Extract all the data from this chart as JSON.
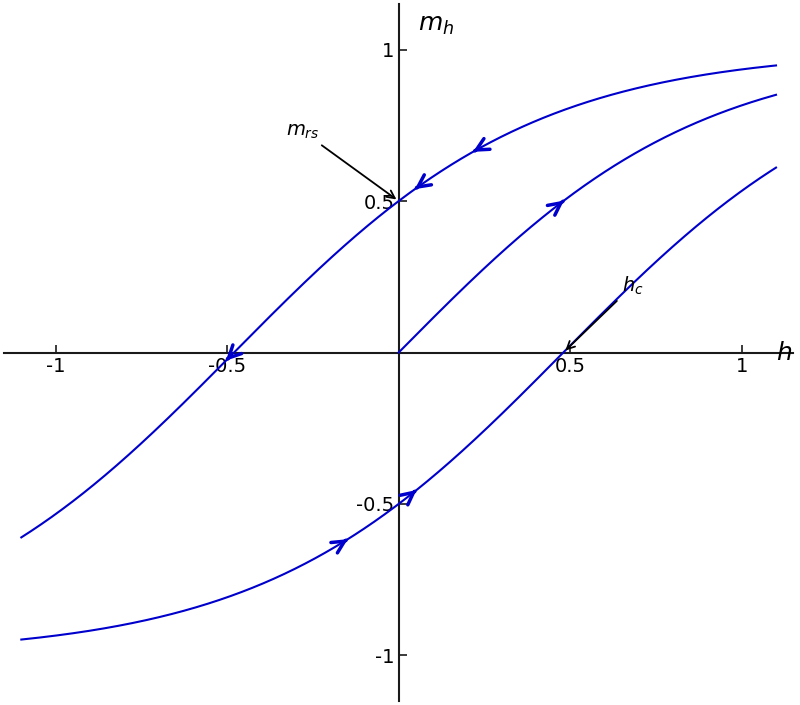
{
  "xlabel": "h",
  "ylabel": "m_h",
  "xlim": [
    -1.15,
    1.15
  ],
  "ylim": [
    -1.15,
    1.15
  ],
  "xticks": [
    -1,
    -0.5,
    0.5,
    1
  ],
  "yticks": [
    -1,
    -0.5,
    0.5,
    1
  ],
  "curve_color": "#0000CD",
  "hc": 0.48,
  "mrs": 0.5,
  "k_steep": 12.0,
  "k_broad": 1.5,
  "background_color": "#ffffff",
  "axis_color": "#1a1a1a",
  "figsize": [
    8.0,
    7.05
  ],
  "dpi": 100
}
